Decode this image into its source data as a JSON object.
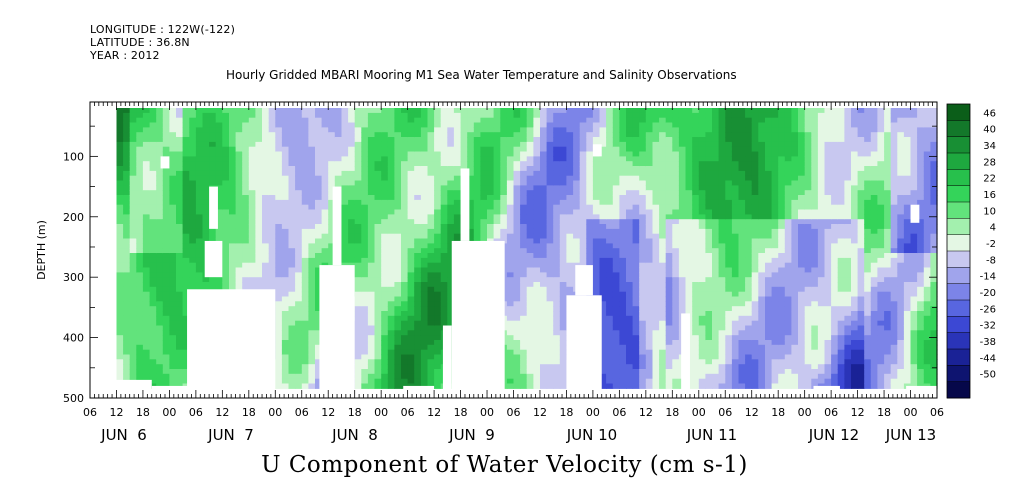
{
  "header": {
    "longitude": "LONGITUDE : 122W(-122)",
    "latitude": "LATITUDE : 36.8N",
    "year": "YEAR : 2012"
  },
  "chart_data": {
    "type": "heatmap",
    "title": "Hourly Gridded MBARI Mooring M1 Sea Water Temperature and Salinity Observations",
    "variable_label": "U Component of Water Velocity (cm s-1)",
    "ylabel": "DEPTH (m)",
    "ylim": [
      500,
      10
    ],
    "y_reversed": true,
    "y_ticks": [
      100,
      200,
      300,
      400,
      500
    ],
    "x_hour_ticks": [
      "06",
      "12",
      "18",
      "00",
      "06",
      "12",
      "18",
      "00",
      "06",
      "12",
      "18",
      "00",
      "06",
      "12",
      "18",
      "00",
      "06",
      "12",
      "18",
      "00",
      "06",
      "12",
      "18",
      "00",
      "06",
      "12",
      "18",
      "00",
      "06",
      "12",
      "18",
      "00",
      "06"
    ],
    "x_day_labels": [
      "JUN  6",
      "JUN  7",
      "JUN  8",
      "JUN  9",
      "JUN 10",
      "JUN 11",
      "JUN 12",
      "JUN 13"
    ],
    "x_range_hours": [
      0,
      192
    ],
    "data_start_hour": 6,
    "data_end_hour": 192,
    "depth_data_range": [
      20,
      480
    ],
    "colorbar": {
      "levels": [
        "46",
        "40",
        "34",
        "28",
        "22",
        "16",
        "10",
        "4",
        "-2",
        "-8",
        "-14",
        "-20",
        "-26",
        "-32",
        "-38",
        "-44",
        "-50"
      ],
      "colors": [
        "#0b5e19",
        "#13782a",
        "#188f34",
        "#1ea83f",
        "#27c04c",
        "#34d45a",
        "#62e37c",
        "#a3f0ae",
        "#e4f7e4",
        "#c8c8f0",
        "#a0a4ec",
        "#7c84e8",
        "#5866e0",
        "#3c48d4",
        "#2a34b8",
        "#1a2296",
        "#0e1470",
        "#06084a"
      ]
    },
    "blanks": [
      {
        "start": 6,
        "end": 14,
        "depth_top": 470,
        "depth_bottom": 500
      },
      {
        "start": 14,
        "end": 30,
        "depth_top": 480,
        "depth_bottom": 500
      },
      {
        "start": 22,
        "end": 42,
        "depth_top": 320,
        "depth_bottom": 500
      },
      {
        "start": 26,
        "end": 30,
        "depth_top": 240,
        "depth_bottom": 300
      },
      {
        "start": 27,
        "end": 29,
        "depth_top": 150,
        "depth_bottom": 220
      },
      {
        "start": 16,
        "end": 18,
        "depth_top": 100,
        "depth_bottom": 120
      },
      {
        "start": 52,
        "end": 60,
        "depth_top": 280,
        "depth_bottom": 500
      },
      {
        "start": 55,
        "end": 57,
        "depth_top": 150,
        "depth_bottom": 280
      },
      {
        "start": 71,
        "end": 78,
        "depth_top": 480,
        "depth_bottom": 500
      },
      {
        "start": 80,
        "end": 82,
        "depth_top": 380,
        "depth_bottom": 500
      },
      {
        "start": 82,
        "end": 94,
        "depth_top": 240,
        "depth_bottom": 500
      },
      {
        "start": 84,
        "end": 86,
        "depth_top": 120,
        "depth_bottom": 240
      },
      {
        "start": 108,
        "end": 116,
        "depth_top": 330,
        "depth_bottom": 500
      },
      {
        "start": 110,
        "end": 114,
        "depth_top": 280,
        "depth_bottom": 330
      },
      {
        "start": 114,
        "end": 116,
        "depth_top": 80,
        "depth_bottom": 100
      },
      {
        "start": 134,
        "end": 136,
        "depth_top": 360,
        "depth_bottom": 500
      },
      {
        "start": 164,
        "end": 170,
        "depth_top": 480,
        "depth_bottom": 500
      },
      {
        "start": 186,
        "end": 188,
        "depth_top": 180,
        "depth_bottom": 210
      },
      {
        "start": 185,
        "end": 192,
        "depth_top": 480,
        "depth_bottom": 500
      }
    ]
  }
}
